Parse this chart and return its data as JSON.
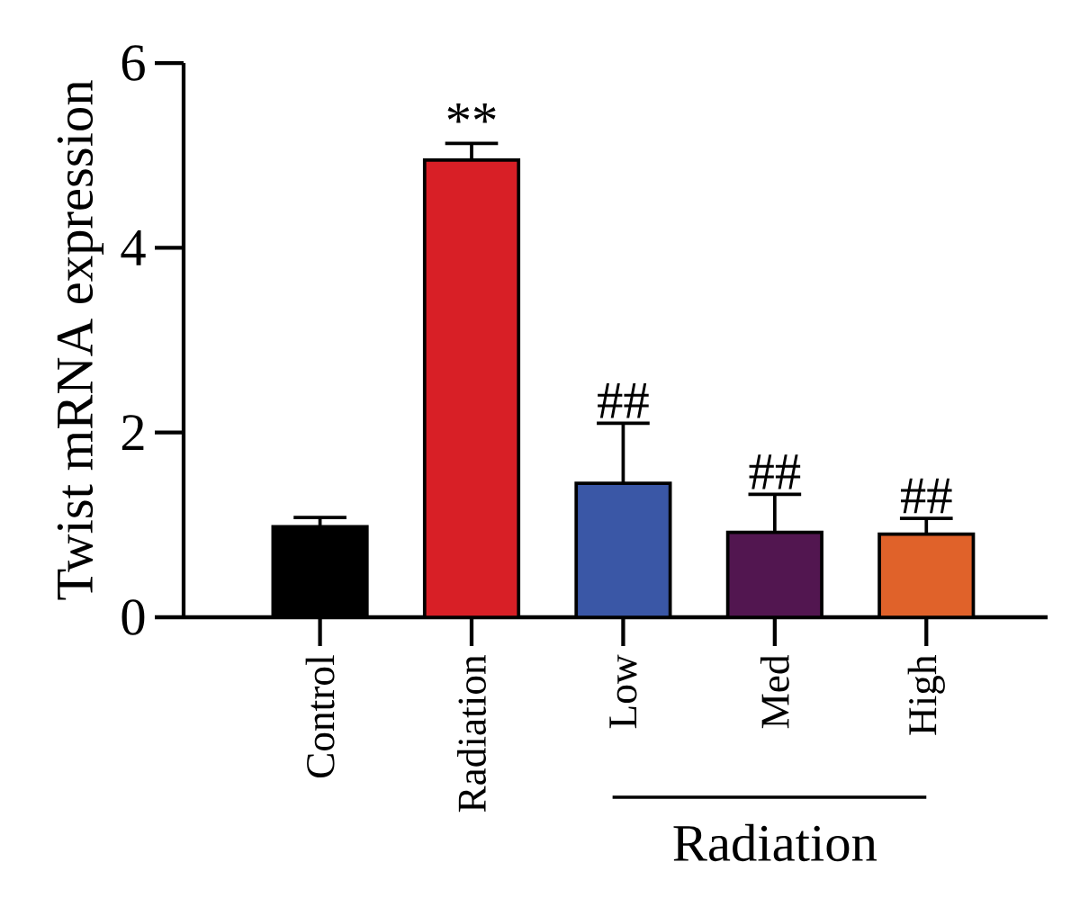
{
  "chart_data": {
    "type": "bar",
    "ylabel": "Twist mRNA expression",
    "categories": [
      "Control",
      "Radiation",
      "Low",
      "Med",
      "High"
    ],
    "values": [
      0.98,
      4.95,
      1.45,
      0.92,
      0.9
    ],
    "errors": [
      0.1,
      0.18,
      0.65,
      0.41,
      0.17
    ],
    "colors": [
      "#000000",
      "#d81f26",
      "#3a57a6",
      "#521650",
      "#e0622a"
    ],
    "ylim": [
      0,
      6
    ],
    "yticks": [
      0,
      2,
      4,
      6
    ],
    "annotations": [
      {
        "text": "**",
        "x": "Radiation",
        "y": 5.13
      },
      {
        "text": "##",
        "x": "Low",
        "y": 2.1
      },
      {
        "text": "##",
        "x": "Med",
        "y": 1.33
      },
      {
        "text": "##",
        "x": "High",
        "y": 1.07
      },
      "Radiation"
    ]
  }
}
